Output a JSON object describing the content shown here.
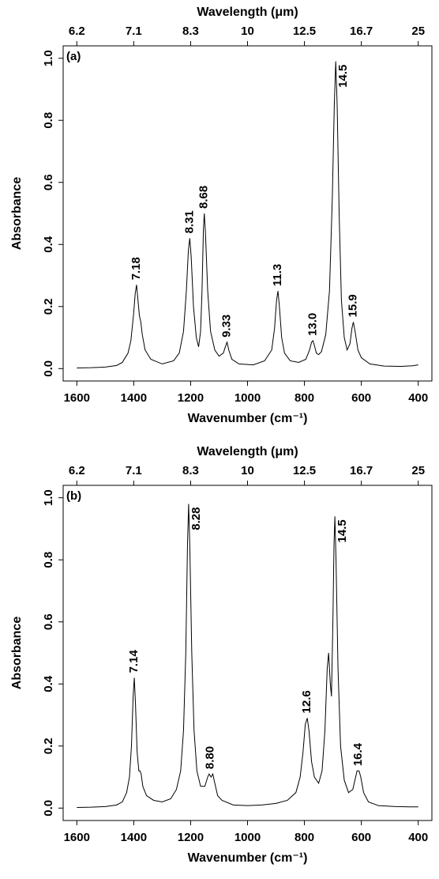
{
  "chart_data": [
    {
      "type": "line",
      "panel_label": "(a)",
      "color": "#000000",
      "xlabel": "Wavenumber (cm⁻¹)",
      "ylabel": "Absorbance",
      "x2label": "Wavelength (μm)",
      "xlim": [
        1648,
        352
      ],
      "ylim": [
        -0.04,
        1.04
      ],
      "xticks": [
        1600,
        1400,
        1200,
        1000,
        800,
        600,
        400
      ],
      "x2ticks": [
        {
          "value": 1600,
          "label": "6.2"
        },
        {
          "value": 1400,
          "label": "7.1"
        },
        {
          "value": 1200,
          "label": "8.3"
        },
        {
          "value": 1000,
          "label": "10"
        },
        {
          "value": 800,
          "label": "12.5"
        },
        {
          "value": 600,
          "label": "16.7"
        },
        {
          "value": 400,
          "label": "25"
        }
      ],
      "yticks": [
        {
          "value": 0,
          "label": "0.0"
        },
        {
          "value": 0.2,
          "label": "0.2"
        },
        {
          "value": 0.4,
          "label": "0.4"
        },
        {
          "value": 0.6,
          "label": "0.6"
        },
        {
          "value": 0.8,
          "label": "0.8"
        },
        {
          "value": 1,
          "label": "1.0"
        }
      ],
      "x": [
        1600,
        1550,
        1500,
        1460,
        1440,
        1420,
        1410,
        1400,
        1395,
        1390,
        1385,
        1380,
        1375,
        1370,
        1360,
        1340,
        1300,
        1260,
        1240,
        1225,
        1215,
        1208,
        1203,
        1198,
        1190,
        1180,
        1172,
        1165,
        1160,
        1155,
        1152,
        1148,
        1140,
        1130,
        1115,
        1100,
        1085,
        1078,
        1072,
        1066,
        1055,
        1030,
        980,
        940,
        915,
        905,
        898,
        893,
        888,
        880,
        870,
        850,
        820,
        795,
        782,
        775,
        770,
        765,
        758,
        750,
        740,
        725,
        712,
        702,
        695,
        690,
        685,
        678,
        670,
        660,
        650,
        640,
        633,
        628,
        622,
        612,
        600,
        570,
        520,
        460,
        420,
        400
      ],
      "values": [
        0.002,
        0.003,
        0.005,
        0.01,
        0.02,
        0.05,
        0.09,
        0.18,
        0.24,
        0.27,
        0.22,
        0.17,
        0.15,
        0.11,
        0.06,
        0.03,
        0.015,
        0.025,
        0.05,
        0.12,
        0.25,
        0.38,
        0.42,
        0.36,
        0.2,
        0.1,
        0.07,
        0.12,
        0.25,
        0.45,
        0.5,
        0.44,
        0.25,
        0.12,
        0.06,
        0.04,
        0.05,
        0.07,
        0.085,
        0.06,
        0.03,
        0.015,
        0.012,
        0.025,
        0.06,
        0.13,
        0.22,
        0.25,
        0.2,
        0.1,
        0.05,
        0.025,
        0.02,
        0.03,
        0.06,
        0.085,
        0.09,
        0.075,
        0.05,
        0.045,
        0.055,
        0.11,
        0.25,
        0.55,
        0.85,
        0.99,
        0.85,
        0.5,
        0.22,
        0.1,
        0.06,
        0.08,
        0.13,
        0.15,
        0.12,
        0.06,
        0.035,
        0.015,
        0.008,
        0.007,
        0.009,
        0.012
      ],
      "annotations": [
        {
          "text": "7.18",
          "x": 1390,
          "y": 0.27
        },
        {
          "text": "8.31",
          "x": 1203,
          "y": 0.42
        },
        {
          "text": "8.68",
          "x": 1152,
          "y": 0.5
        },
        {
          "text": "9.33",
          "x": 1072,
          "y": 0.085
        },
        {
          "text": "11.3",
          "x": 893,
          "y": 0.25
        },
        {
          "text": "13.0",
          "x": 770,
          "y": 0.09
        },
        {
          "text": "14.5",
          "x": 690,
          "y": 0.99
        },
        {
          "text": "15.9",
          "x": 628,
          "y": 0.15
        }
      ]
    },
    {
      "type": "line",
      "panel_label": "(b)",
      "color": "#000000",
      "xlabel": "Wavenumber (cm⁻¹)",
      "ylabel": "Absorbance",
      "x2label": "Wavelength (μm)",
      "xlim": [
        1648,
        352
      ],
      "ylim": [
        -0.04,
        1.04
      ],
      "xticks": [
        1600,
        1400,
        1200,
        1000,
        800,
        600,
        400
      ],
      "x2ticks": [
        {
          "value": 1600,
          "label": "6.2"
        },
        {
          "value": 1400,
          "label": "7.1"
        },
        {
          "value": 1200,
          "label": "8.3"
        },
        {
          "value": 1000,
          "label": "10"
        },
        {
          "value": 800,
          "label": "12.5"
        },
        {
          "value": 600,
          "label": "16.7"
        },
        {
          "value": 400,
          "label": "25"
        }
      ],
      "yticks": [
        {
          "value": 0,
          "label": "0.0"
        },
        {
          "value": 0.2,
          "label": "0.2"
        },
        {
          "value": 0.4,
          "label": "0.4"
        },
        {
          "value": 0.6,
          "label": "0.6"
        },
        {
          "value": 0.8,
          "label": "0.8"
        },
        {
          "value": 1,
          "label": "1.0"
        }
      ],
      "x": [
        1600,
        1550,
        1500,
        1460,
        1440,
        1425,
        1415,
        1408,
        1402,
        1398,
        1394,
        1388,
        1382,
        1378,
        1374,
        1368,
        1355,
        1330,
        1300,
        1270,
        1250,
        1235,
        1225,
        1217,
        1211,
        1207,
        1203,
        1196,
        1188,
        1178,
        1165,
        1150,
        1140,
        1135,
        1128,
        1122,
        1115,
        1105,
        1090,
        1050,
        1000,
        950,
        900,
        860,
        830,
        815,
        805,
        797,
        790,
        784,
        775,
        765,
        750,
        738,
        728,
        720,
        715,
        709,
        705,
        700,
        696,
        693,
        689,
        682,
        673,
        660,
        645,
        630,
        620,
        615,
        608,
        602,
        592,
        575,
        540,
        480,
        430,
        400
      ],
      "values": [
        0.002,
        0.003,
        0.005,
        0.01,
        0.02,
        0.05,
        0.1,
        0.2,
        0.36,
        0.42,
        0.34,
        0.18,
        0.12,
        0.12,
        0.11,
        0.07,
        0.04,
        0.025,
        0.02,
        0.03,
        0.06,
        0.12,
        0.25,
        0.5,
        0.85,
        0.98,
        0.85,
        0.5,
        0.25,
        0.12,
        0.07,
        0.07,
        0.1,
        0.11,
        0.1,
        0.11,
        0.08,
        0.04,
        0.025,
        0.01,
        0.008,
        0.01,
        0.015,
        0.025,
        0.05,
        0.1,
        0.18,
        0.27,
        0.29,
        0.25,
        0.15,
        0.1,
        0.08,
        0.12,
        0.25,
        0.45,
        0.5,
        0.4,
        0.36,
        0.6,
        0.85,
        0.94,
        0.8,
        0.45,
        0.2,
        0.09,
        0.05,
        0.06,
        0.1,
        0.12,
        0.12,
        0.1,
        0.05,
        0.02,
        0.008,
        0.005,
        0.004,
        0.004
      ],
      "annotations": [
        {
          "text": "7.14",
          "x": 1398,
          "y": 0.42
        },
        {
          "text": "8.28",
          "x": 1207,
          "y": 0.98
        },
        {
          "text": "8.80",
          "x": 1130,
          "y": 0.11
        },
        {
          "text": "12.6",
          "x": 790,
          "y": 0.29
        },
        {
          "text": "14.5",
          "x": 693,
          "y": 0.94
        },
        {
          "text": "16.4",
          "x": 610,
          "y": 0.12
        }
      ]
    }
  ]
}
